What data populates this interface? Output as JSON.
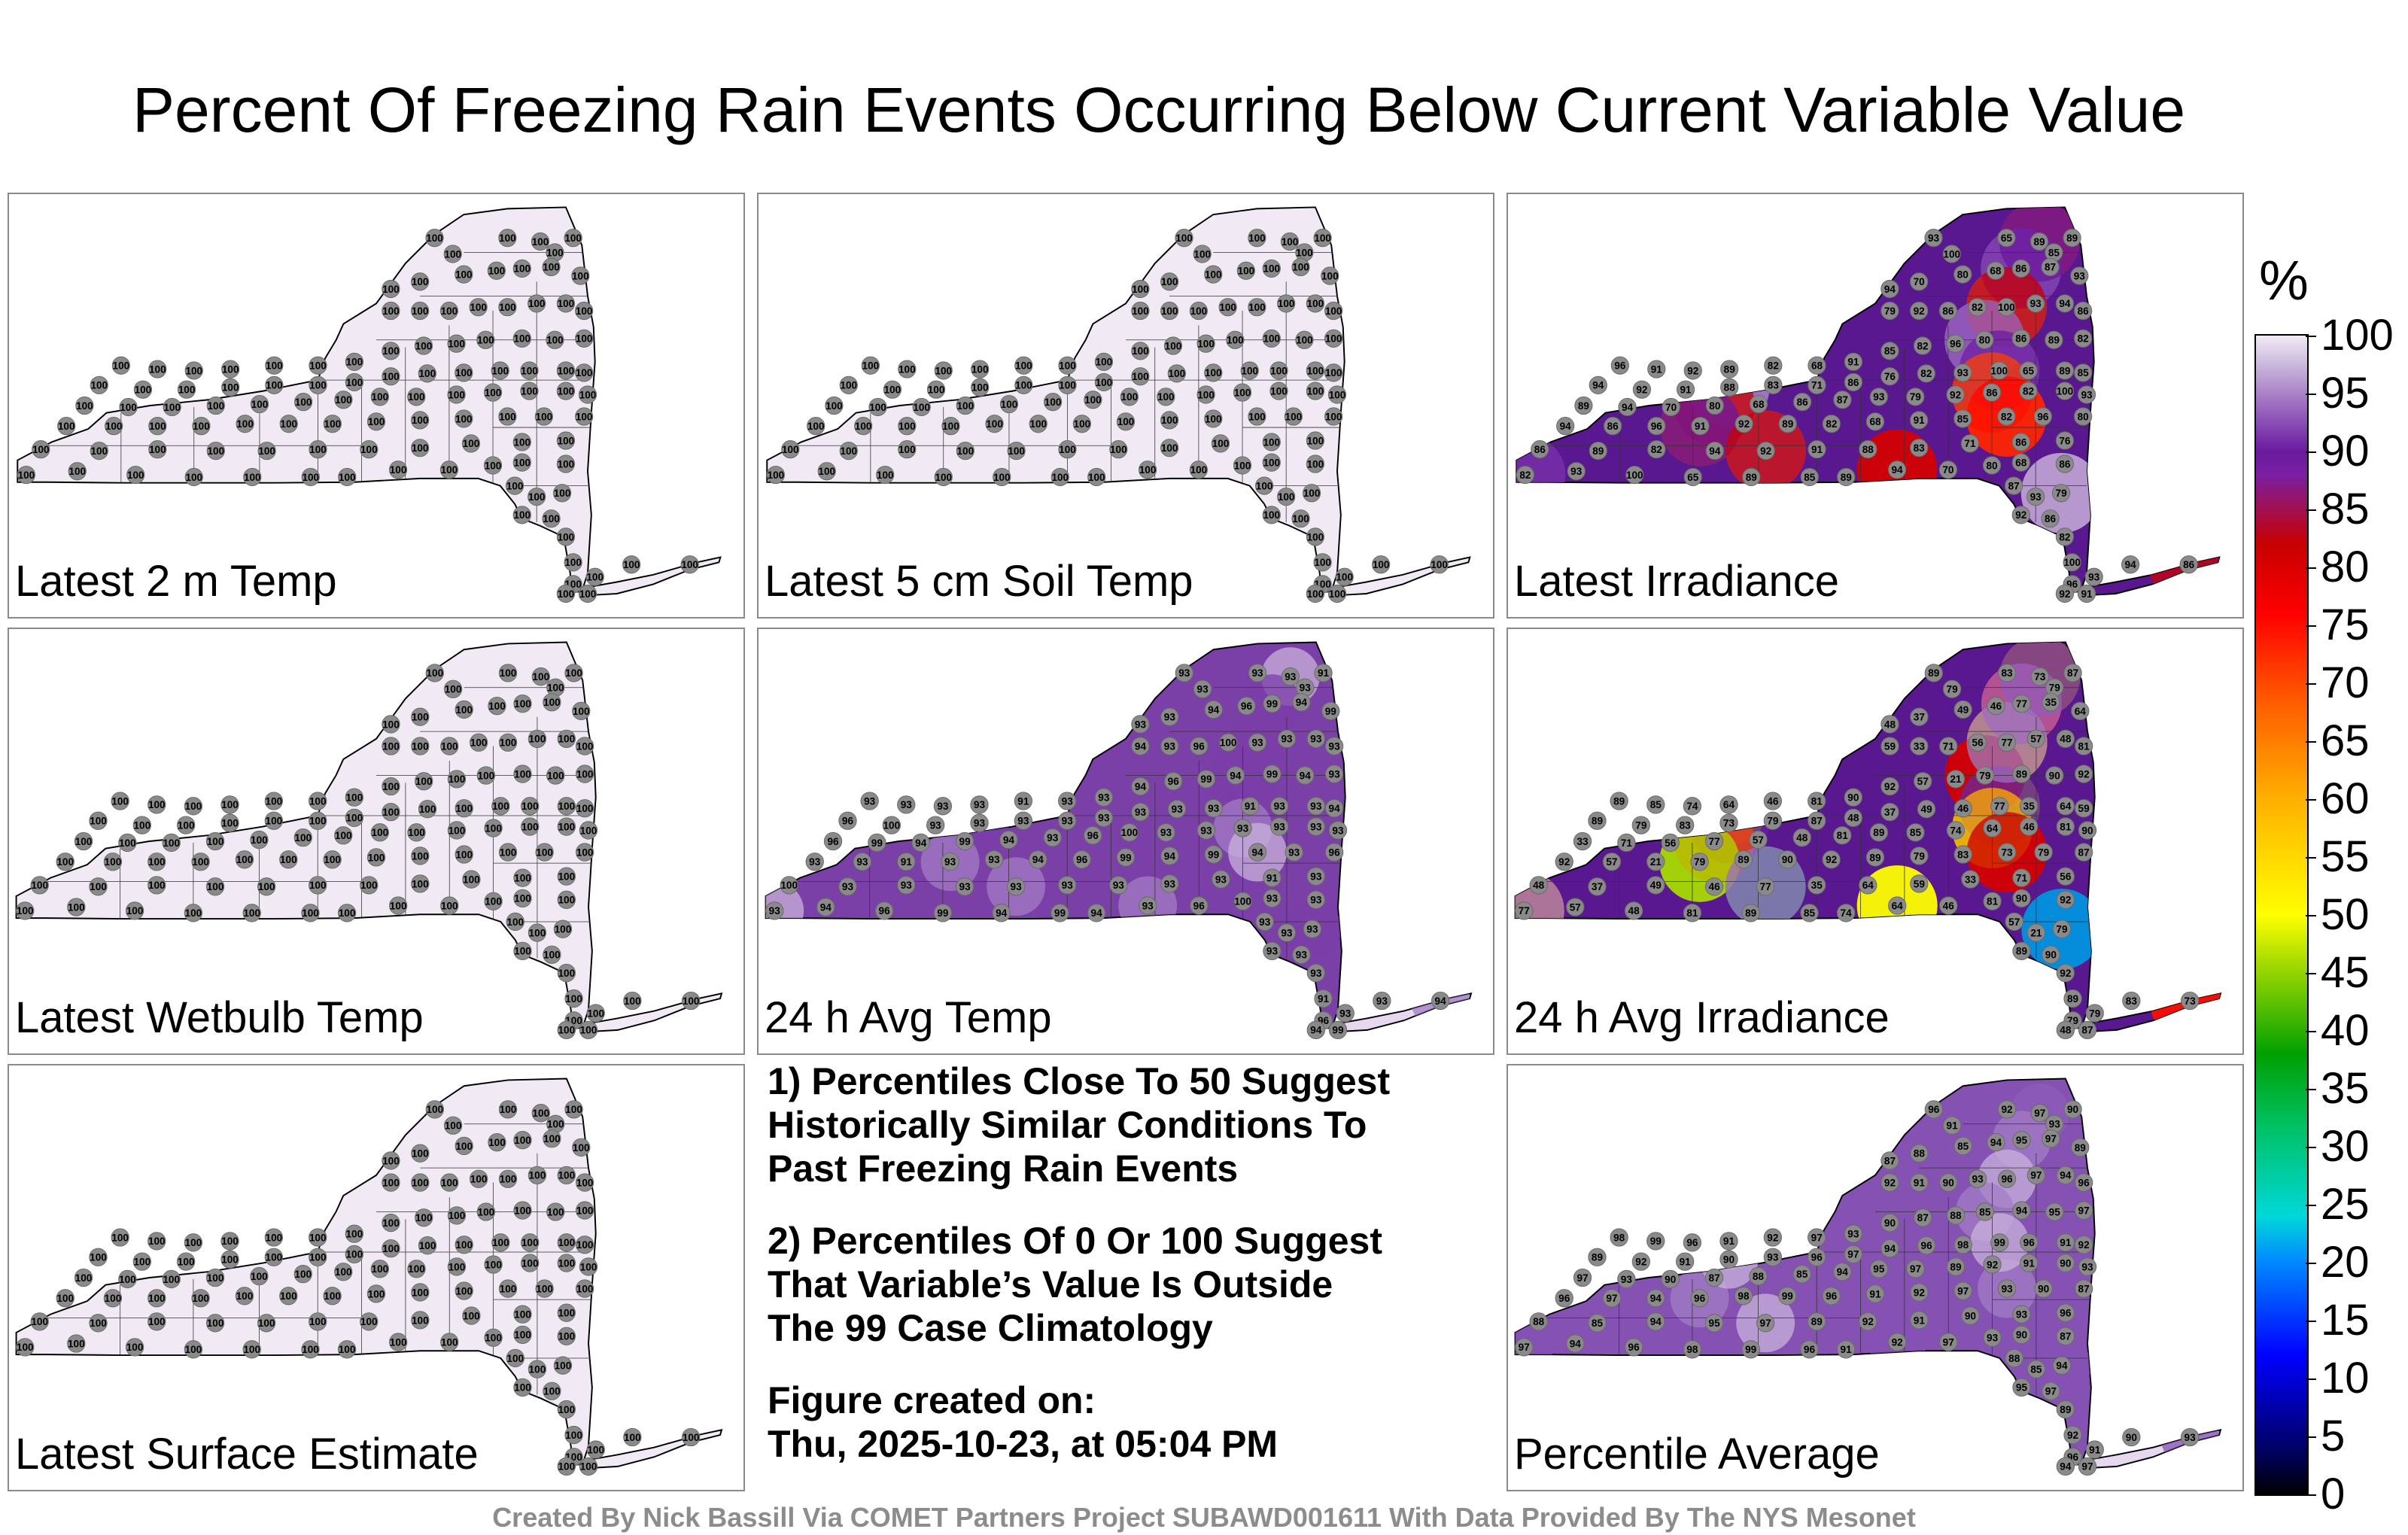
{
  "title": "Percent Of Freezing Rain Events Occurring Below Current Variable Value",
  "panels": [
    {
      "id": "t2m",
      "label": "Latest 2 m Temp",
      "scheme": "uniform",
      "fill": "#f1eaf5",
      "value": 100
    },
    {
      "id": "soil",
      "label": "Latest 5 cm Soil Temp",
      "scheme": "uniform",
      "fill": "#f1eaf5",
      "value": 100
    },
    {
      "id": "irr",
      "label": "Latest Irradiance",
      "scheme": "hot",
      "values": [
        93,
        100,
        65,
        89,
        85,
        89,
        94,
        70,
        80,
        68,
        86,
        87,
        93,
        79,
        92,
        86,
        82,
        100,
        93,
        94,
        86,
        96,
        91,
        92,
        89,
        82,
        68,
        91,
        85,
        82,
        96,
        80,
        86,
        89,
        82,
        94,
        92,
        91,
        88,
        83,
        71,
        86,
        76,
        82
      ]
    },
    {
      "id": "wb",
      "label": "Latest Wetbulb Temp",
      "scheme": "uniform",
      "fill": "#f1eaf5",
      "value": 100
    },
    {
      "id": "avgt",
      "label": "24 h Avg Temp",
      "scheme": "purple",
      "fill": "#7b3fa8",
      "values": [
        93,
        93,
        93,
        93,
        93,
        91,
        93,
        93,
        94,
        96,
        99,
        94,
        99,
        94,
        93,
        96,
        100,
        93,
        93,
        93
      ]
    },
    {
      "id": "avgirr",
      "label": "24 h Avg Irradiance",
      "scheme": "hot",
      "values": [
        89,
        79,
        83,
        73,
        79,
        87,
        48,
        37,
        49,
        46,
        77,
        35,
        64,
        59,
        33,
        71,
        56,
        77,
        57,
        48,
        81,
        89,
        85,
        74,
        64,
        46,
        81,
        90,
        92,
        57,
        21,
        79,
        89,
        90,
        92
      ]
    },
    {
      "id": "sfc",
      "label": "Latest Surface Estimate",
      "scheme": "uniform",
      "fill": "#f1eaf5",
      "value": 100
    },
    {
      "id": "avg",
      "label": "Percentile Average",
      "scheme": "purple",
      "fill": "#8552b4",
      "values": [
        96,
        91,
        92,
        97,
        93,
        90,
        87,
        88,
        85,
        94,
        95,
        97,
        89,
        92,
        91,
        90,
        93,
        96,
        97,
        94,
        96,
        98,
        99
      ]
    }
  ],
  "notes": [
    "1) Percentiles Close To 50 Suggest\nHistorically Similar Conditions To\nPast Freezing Rain Events",
    "2) Percentiles Of 0 Or 100 Suggest\nThat Variable’s Value Is Outside\nThe 99 Case Climatology",
    "Figure created on:\nThu, 2025-10-23, at 05:04 PM"
  ],
  "colorbar": {
    "unit": "%",
    "ticks": [
      "100",
      "95",
      "90",
      "85",
      "80",
      "75",
      "70",
      "65",
      "60",
      "55",
      "50",
      "45",
      "40",
      "35",
      "30",
      "25",
      "20",
      "15",
      "10",
      "5",
      "0"
    ]
  },
  "footer": "Created By Nick Bassill Via COMET Partners Project SUBAWD001611 With Data Provided By The NYS Mesonet"
}
